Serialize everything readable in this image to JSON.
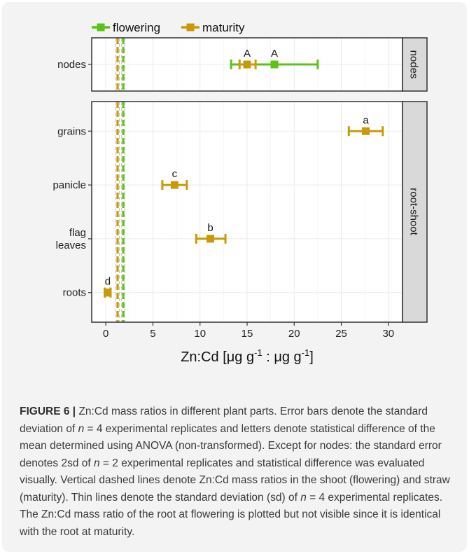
{
  "chart_data": {
    "type": "scatter",
    "xlabel_main": "Zn:Cd [μg g",
    "xlabel_sup1": "-1",
    "xlabel_mid": " : μg g",
    "xlabel_sup2": "-1",
    "xlabel_end": "]",
    "xlim": [
      -1.5,
      31.5
    ],
    "xticks": [
      0,
      5,
      10,
      15,
      20,
      25,
      30
    ],
    "legend": {
      "position": "top",
      "entries": [
        {
          "name": "flowering",
          "color": "#5ac314"
        },
        {
          "name": "maturity",
          "color": "#c99a06"
        }
      ]
    },
    "panels": [
      {
        "facet": "nodes",
        "categories": [
          "nodes"
        ],
        "points": [
          {
            "category": "nodes",
            "series": "flowering",
            "x": 17.9,
            "lo": 13.3,
            "hi": 22.5,
            "letter": "A"
          },
          {
            "category": "nodes",
            "series": "maturity",
            "x": 15.0,
            "lo": 14.2,
            "hi": 15.9,
            "letter": "A"
          }
        ]
      },
      {
        "facet": "root-shoot",
        "categories": [
          "grains",
          "panicle",
          "flag leaves",
          "roots"
        ],
        "points": [
          {
            "category": "grains",
            "series": "maturity",
            "x": 27.6,
            "lo": 25.8,
            "hi": 29.4,
            "letter": "a"
          },
          {
            "category": "panicle",
            "series": "maturity",
            "x": 7.3,
            "lo": 6.0,
            "hi": 8.6,
            "letter": "c"
          },
          {
            "category": "flag leaves",
            "series": "maturity",
            "x": 11.1,
            "lo": 9.6,
            "hi": 12.7,
            "letter": "b"
          },
          {
            "category": "roots",
            "series": "flowering",
            "x": 0.2,
            "lo": -0.1,
            "hi": 0.5,
            "letter": ""
          },
          {
            "category": "roots",
            "series": "maturity",
            "x": 0.2,
            "lo": -0.1,
            "hi": 0.5,
            "letter": "d"
          }
        ]
      }
    ],
    "vlines": [
      {
        "series": "maturity",
        "x": 1.25,
        "sd": 0.18
      },
      {
        "series": "flowering",
        "x": 1.85,
        "sd": 0.18
      }
    ],
    "grid": true
  },
  "caption": {
    "label": "FIGURE 6 |",
    "p1": " Zn:Cd mass ratios in different plant parts. Error bars denote the standard deviation of ",
    "n1": "n",
    "p2": " = 4 experimental replicates and letters denote statistical difference of the mean determined using ANOVA (non-transformed). Except for nodes: the standard error denotes 2sd of ",
    "n2": "n",
    "p3": " = 2 experimental replicates and statistical difference was evaluated visually. Vertical dashed lines denote Zn:Cd mass ratios in the shoot (flowering) and straw (maturity). Thin lines denote the standard deviation (sd) of ",
    "n3": "n",
    "p4": " = 4 experimental replicates. The Zn:Cd mass ratio of the root at flowering is plotted but not visible since it is identical with the root at maturity."
  }
}
